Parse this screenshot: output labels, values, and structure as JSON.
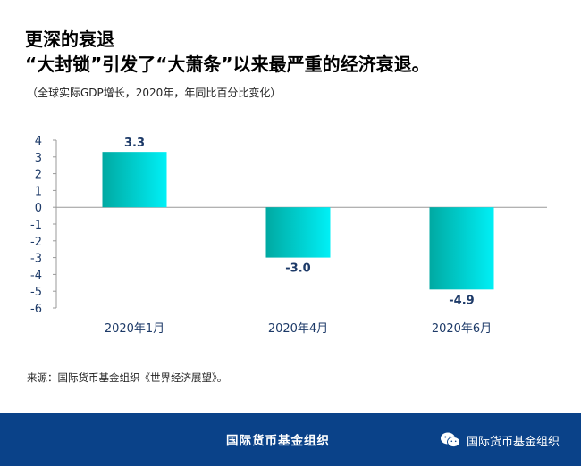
{
  "header": {
    "title_line1": "更深的衰退",
    "title_line2": "“大封锁”引发了“大萧条”以来最严重的经济衰退。",
    "subtitle": "（全球实际GDP增长，2020年，年同比百分比变化）"
  },
  "source": "来源：国际货币基金组织《世界经济展望》。",
  "footer": {
    "org_name": "国际货币基金组织",
    "wechat_name": "国际货币基金组织",
    "wechat_icon": "wechat-icon"
  },
  "colors": {
    "bar_gradient_start": "#00a9a2",
    "bar_gradient_end": "#00f0f6",
    "label_color": "#1d3a68",
    "footer_bg": "#0a4289"
  },
  "chart_data": {
    "type": "bar",
    "categories": [
      "2020年1月",
      "2020年4月",
      "2020年6月"
    ],
    "values": [
      3.3,
      -3.0,
      -4.9
    ],
    "data_labels": [
      "3.3",
      "-3.0",
      "-4.9"
    ],
    "ylim": [
      -6,
      4
    ],
    "yticks": [
      4,
      3,
      2,
      1,
      0,
      -1,
      -2,
      -3,
      -4,
      -5,
      -6
    ],
    "xlabel": "",
    "ylabel": "",
    "grid": false,
    "legend": "none"
  }
}
